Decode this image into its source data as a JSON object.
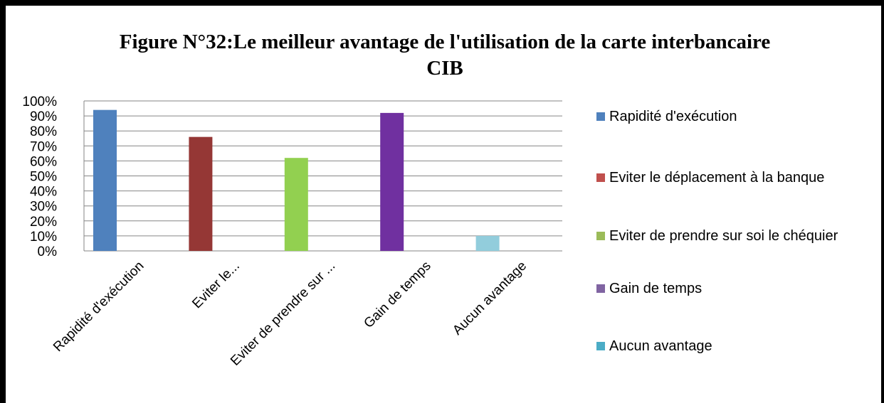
{
  "chart_data": {
    "type": "bar",
    "title": "Figure N°32:Le meilleur avantage de l'utilisation de la carte interbancaire CIB",
    "categories": [
      "Rapidité d'exécution",
      "Eviter le...",
      "Eviter de prendre sur ...",
      "Gain de temps",
      "Aucun avantage"
    ],
    "values": [
      94,
      76,
      62,
      92,
      10
    ],
    "colors": [
      "#4f81bd",
      "#953735",
      "#92d050",
      "#7030a0",
      "#92cddc"
    ],
    "ylim": [
      0,
      100
    ],
    "yticks": [
      {
        "value": 0,
        "label": "0%"
      },
      {
        "value": 10,
        "label": "10%"
      },
      {
        "value": 20,
        "label": "20%"
      },
      {
        "value": 30,
        "label": "30%"
      },
      {
        "value": 40,
        "label": "40%"
      },
      {
        "value": 50,
        "label": "50%"
      },
      {
        "value": 60,
        "label": "60%"
      },
      {
        "value": 70,
        "label": "70%"
      },
      {
        "value": 80,
        "label": "80%"
      },
      {
        "value": 90,
        "label": "90%"
      },
      {
        "value": 100,
        "label": "100%"
      }
    ],
    "grid": true,
    "legend": [
      {
        "name": "Rapidité d'exécution",
        "color": "#4f81bd"
      },
      {
        "name": "Eviter le déplacement à la banque",
        "color": "#c0504d"
      },
      {
        "name": "Eviter de prendre sur soi le chéquier",
        "color": "#9bbb59"
      },
      {
        "name": "Gain de temps",
        "color": "#8064a2"
      },
      {
        "name": "Aucun avantage",
        "color": "#4bacc6"
      }
    ],
    "legend_position": "right"
  }
}
